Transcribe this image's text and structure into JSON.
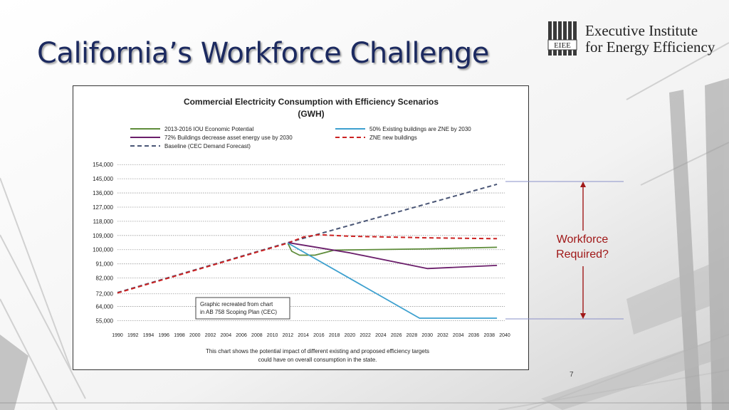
{
  "slide": {
    "title": "California’s Workforce Challenge",
    "page_number": "7",
    "callout": {
      "line1": "Workforce",
      "line2": "Required?"
    }
  },
  "logo": {
    "line1": "Executive Institute",
    "line2": "for Energy Efficiency",
    "mark_text": "EIEE"
  },
  "chart_data": {
    "type": "line",
    "title": "Commercial Electricity Consumption with Efficiency Scenarios",
    "subtitle": "(GWH)",
    "xlabel": "",
    "ylabel": "",
    "xlim": [
      1990,
      2040
    ],
    "ylim": [
      52000,
      155000
    ],
    "x_ticks": [
      "1990",
      "1992",
      "1994",
      "1996",
      "1998",
      "2000",
      "2002",
      "2004",
      "2006",
      "2008",
      "2010",
      "2012",
      "2014",
      "2016",
      "2018",
      "2020",
      "2022",
      "2024",
      "2026",
      "2028",
      "2030",
      "2032",
      "2034",
      "2036",
      "2038",
      "2040"
    ],
    "y_ticks": [
      {
        "label": "154,000",
        "value": 154000
      },
      {
        "label": "145,000",
        "value": 145000
      },
      {
        "label": "136,000",
        "value": 136000
      },
      {
        "label": "127,000",
        "value": 127000
      },
      {
        "label": "118,000",
        "value": 118000
      },
      {
        "label": "109,000",
        "value": 109000
      },
      {
        "label": "100,000",
        "value": 100000
      },
      {
        "label": "91,000",
        "value": 91000
      },
      {
        "label": "82,000",
        "value": 82000
      },
      {
        "label": "72,000",
        "value": 72000
      },
      {
        "label": "64,000",
        "value": 64000
      },
      {
        "label": "55,000",
        "value": 55000
      }
    ],
    "grid": "horizontal dotted",
    "legend_position": "top",
    "series": [
      {
        "name": "Baseline (CEC Demand Forecast)",
        "color": "#4a5676",
        "style": "dashed",
        "points": [
          [
            1990,
            72800
          ],
          [
            2012,
            104500
          ],
          [
            2039,
            141500
          ]
        ]
      },
      {
        "name": "ZNE new buildings",
        "color": "#cc2222",
        "style": "dashed",
        "points": [
          [
            1990,
            72500
          ],
          [
            2012,
            104200
          ],
          [
            2014,
            108000
          ],
          [
            2016,
            109500
          ],
          [
            2020,
            108500
          ],
          [
            2030,
            107500
          ],
          [
            2039,
            107000
          ]
        ]
      },
      {
        "name": "2013-2016 IOU Economic Potential",
        "color": "#5e8c3a",
        "style": "solid",
        "points": [
          [
            2012,
            104000
          ],
          [
            2012.5,
            99000
          ],
          [
            2013.5,
            96500
          ],
          [
            2015.5,
            96500
          ],
          [
            2018,
            99700
          ],
          [
            2030,
            100500
          ],
          [
            2039,
            101500
          ]
        ]
      },
      {
        "name": "72% Buildings decrease asset energy use by 2030",
        "color": "#6b1f6b",
        "style": "solid",
        "points": [
          [
            2012,
            104500
          ],
          [
            2020,
            98000
          ],
          [
            2030,
            88000
          ],
          [
            2039,
            90000
          ]
        ]
      },
      {
        "name": "50% Existing buildings are ZNE by 2030",
        "color": "#3da0cf",
        "style": "solid",
        "points": [
          [
            2012,
            104200
          ],
          [
            2029,
            56500
          ],
          [
            2039,
            56500
          ]
        ]
      }
    ],
    "annotations": {
      "box_note_line1": "Graphic recreated from chart",
      "box_note_line2": "in AB 758 Scoping Plan (CEC)",
      "caption_line1": "This chart shows the potential impact of different existing and proposed efficiency targets",
      "caption_line2": "could have on overall consumption in the state."
    }
  }
}
